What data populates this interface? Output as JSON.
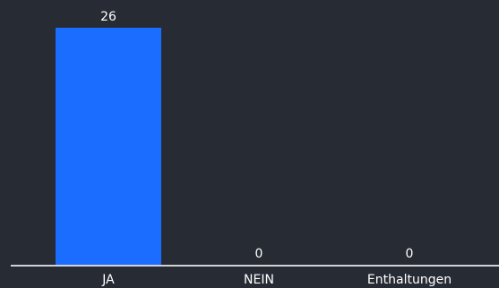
{
  "colors": {
    "background": "#272b34",
    "bar": "#1a6dff",
    "axis": "#d0d2d6",
    "text": "#ffffff"
  },
  "chart_data": {
    "type": "bar",
    "categories": [
      "JA",
      "NEIN",
      "Enthaltungen"
    ],
    "values": [
      26,
      0,
      0
    ],
    "value_labels": [
      "26",
      "0",
      "0"
    ],
    "title": "",
    "xlabel": "",
    "ylabel": "",
    "ylim": [
      0,
      26
    ],
    "grid": false,
    "legend": "none"
  }
}
